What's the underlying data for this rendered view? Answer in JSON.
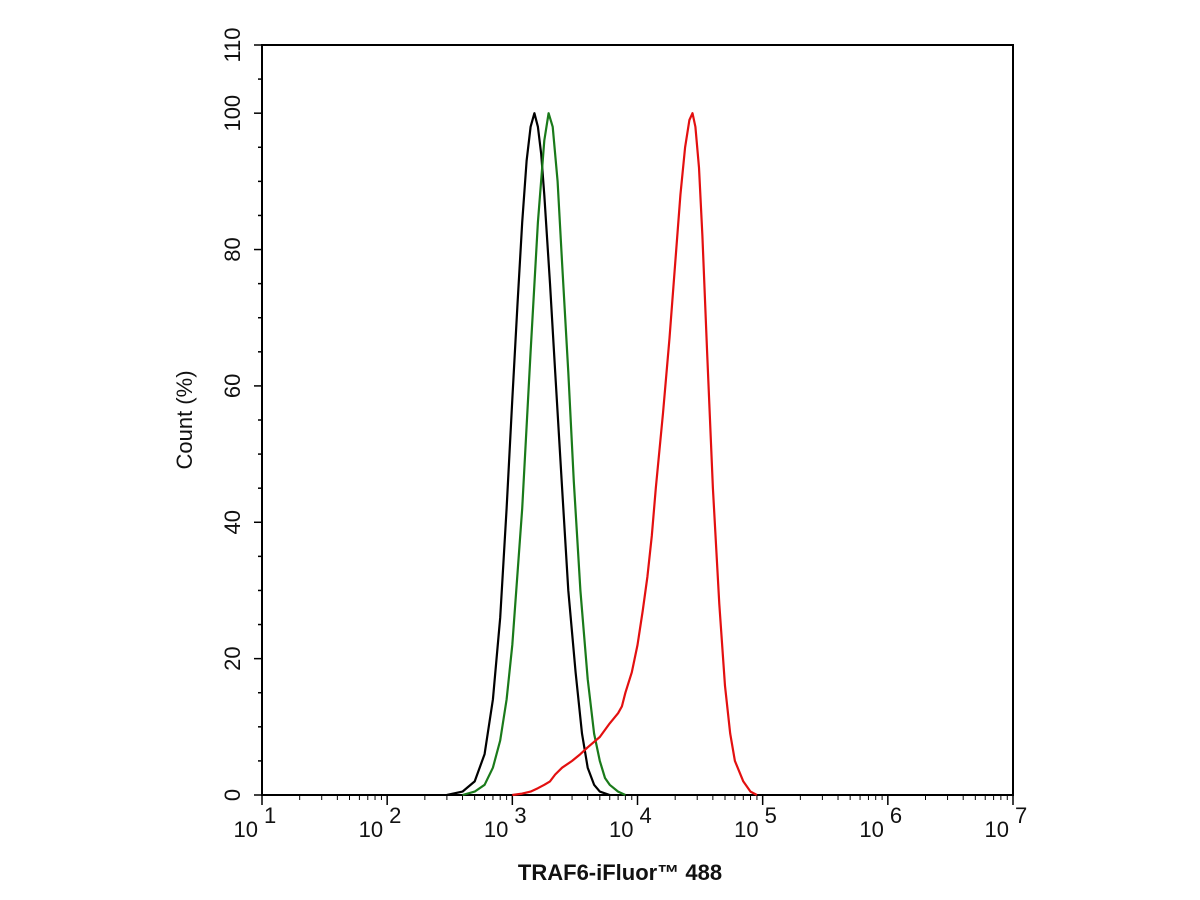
{
  "chart_data": {
    "type": "line",
    "xlabel": "TRAF6-iFluor™ 488",
    "ylabel": "Count  (%)",
    "x_scale": "log",
    "xlim": [
      10,
      10000000
    ],
    "ylim": [
      0,
      110
    ],
    "x_tick_base": "10",
    "x_tick_exponents": [
      "1",
      "2",
      "3",
      "4",
      "5",
      "6",
      "7"
    ],
    "y_ticks": [
      "0",
      "20",
      "40",
      "60",
      "80",
      "100",
      "110"
    ],
    "grid": false,
    "series": [
      {
        "color": "#000000",
        "points": [
          [
            300,
            0
          ],
          [
            400,
            0.5
          ],
          [
            500,
            2
          ],
          [
            600,
            6
          ],
          [
            700,
            14
          ],
          [
            800,
            26
          ],
          [
            900,
            42
          ],
          [
            1000,
            58
          ],
          [
            1100,
            72
          ],
          [
            1200,
            84
          ],
          [
            1300,
            93
          ],
          [
            1400,
            98
          ],
          [
            1500,
            100
          ],
          [
            1600,
            98
          ],
          [
            1700,
            94
          ],
          [
            1800,
            88
          ],
          [
            2000,
            75
          ],
          [
            2200,
            62
          ],
          [
            2500,
            45
          ],
          [
            2800,
            30
          ],
          [
            3200,
            18
          ],
          [
            3600,
            9
          ],
          [
            4000,
            4
          ],
          [
            4500,
            1.5
          ],
          [
            5000,
            0.5
          ],
          [
            6000,
            0
          ]
        ]
      },
      {
        "color": "#1a7a1a",
        "points": [
          [
            400,
            0
          ],
          [
            500,
            0.5
          ],
          [
            600,
            1.5
          ],
          [
            700,
            4
          ],
          [
            800,
            8
          ],
          [
            900,
            14
          ],
          [
            1000,
            22
          ],
          [
            1200,
            42
          ],
          [
            1400,
            65
          ],
          [
            1600,
            84
          ],
          [
            1800,
            96
          ],
          [
            1950,
            100
          ],
          [
            2100,
            98
          ],
          [
            2300,
            90
          ],
          [
            2500,
            78
          ],
          [
            2800,
            62
          ],
          [
            3100,
            46
          ],
          [
            3500,
            30
          ],
          [
            4000,
            17
          ],
          [
            4500,
            9
          ],
          [
            5000,
            5
          ],
          [
            5500,
            2.5
          ],
          [
            6000,
            1.5
          ],
          [
            7000,
            0.5
          ],
          [
            8000,
            0
          ]
        ]
      },
      {
        "color": "#e31010",
        "points": [
          [
            1000,
            0
          ],
          [
            1200,
            0.2
          ],
          [
            1400,
            0.5
          ],
          [
            1600,
            1
          ],
          [
            1800,
            1.5
          ],
          [
            2000,
            2
          ],
          [
            2200,
            3
          ],
          [
            2500,
            4
          ],
          [
            3000,
            5
          ],
          [
            3500,
            6
          ],
          [
            4000,
            7
          ],
          [
            5000,
            8.5
          ],
          [
            6000,
            10.5
          ],
          [
            7000,
            12
          ],
          [
            7500,
            13
          ],
          [
            8000,
            15
          ],
          [
            9000,
            18
          ],
          [
            10000,
            22
          ],
          [
            11000,
            27
          ],
          [
            12000,
            32
          ],
          [
            13000,
            38
          ],
          [
            14000,
            45
          ],
          [
            16000,
            56
          ],
          [
            18000,
            67
          ],
          [
            20000,
            78
          ],
          [
            22000,
            88
          ],
          [
            24000,
            95
          ],
          [
            26000,
            99
          ],
          [
            27500,
            100
          ],
          [
            29000,
            98
          ],
          [
            31000,
            92
          ],
          [
            33000,
            82
          ],
          [
            36000,
            65
          ],
          [
            40000,
            45
          ],
          [
            45000,
            28
          ],
          [
            50000,
            16
          ],
          [
            55000,
            9
          ],
          [
            60000,
            5
          ],
          [
            70000,
            2
          ],
          [
            80000,
            0.5
          ],
          [
            90000,
            0
          ]
        ]
      }
    ]
  }
}
